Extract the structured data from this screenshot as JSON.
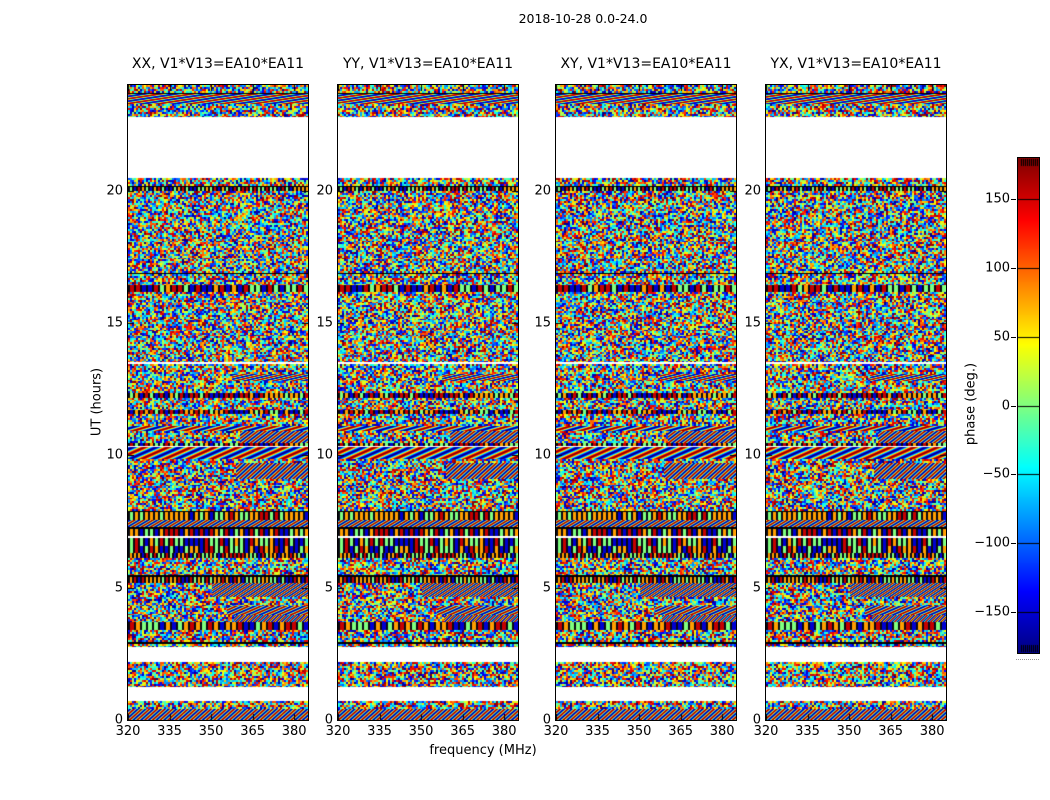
{
  "suptitle": "2018-10-28 0.0-24.0",
  "panels": [
    {
      "title": "XX, V1*V13=EA10*EA11"
    },
    {
      "title": "YY, V1*V13=EA10*EA11"
    },
    {
      "title": "XY, V1*V13=EA10*EA11"
    },
    {
      "title": "YX, V1*V13=EA10*EA11"
    }
  ],
  "axes": {
    "xlabel": "frequency (MHz)",
    "ylabel": "UT (hours)"
  },
  "colorbar": {
    "label": "phase (deg.)",
    "tick_values": [
      150,
      100,
      50,
      0,
      -50,
      -100,
      -150
    ],
    "tick_labels": [
      "150",
      "100",
      "50",
      "0",
      "−50",
      "−100",
      "−150"
    ],
    "vmin": -180,
    "vmax": 180,
    "colormap": "jet"
  },
  "chart_data": {
    "type": "heatmap",
    "title": "2018-10-28 0.0-24.0",
    "subplots": [
      "XX, V1*V13=EA10*EA11",
      "YY, V1*V13=EA10*EA11",
      "XY, V1*V13=EA10*EA11",
      "YX, V1*V13=EA10*EA11"
    ],
    "xlabel": "frequency (MHz)",
    "ylabel": "UT (hours)",
    "xlim": [
      320,
      385
    ],
    "ylim": [
      0,
      24
    ],
    "xticks": [
      320,
      335,
      350,
      365,
      380
    ],
    "xtick_labels": [
      "320",
      "335",
      "350",
      "365",
      "380"
    ],
    "yticks": [
      0,
      5,
      10,
      15,
      20
    ],
    "ytick_labels": [
      "0",
      "5",
      "10",
      "15",
      "20"
    ],
    "value_label": "phase (deg.)",
    "value_range": [
      -180,
      180
    ],
    "colorbar_ticks_deg": [
      150,
      100,
      50,
      0,
      -50,
      -100,
      -150
    ],
    "colormap": "jet",
    "no_data_intervals_ut_hours": [
      [
        20.5,
        22.8
      ],
      [
        2.2,
        2.75
      ],
      [
        0.72,
        1.25
      ]
    ],
    "content": "Visibility phase (deg.) vs frequency (320-385 MHz) and UT time (0-24 h) for baseline V1*V13=EA10*EA11 in four correlations XX, YY, XY, YX; dense pseudo-random fringe/noise pattern in jet colors with black flagged rows, thin white gaps, and blank white intervals where no data were recorded."
  }
}
